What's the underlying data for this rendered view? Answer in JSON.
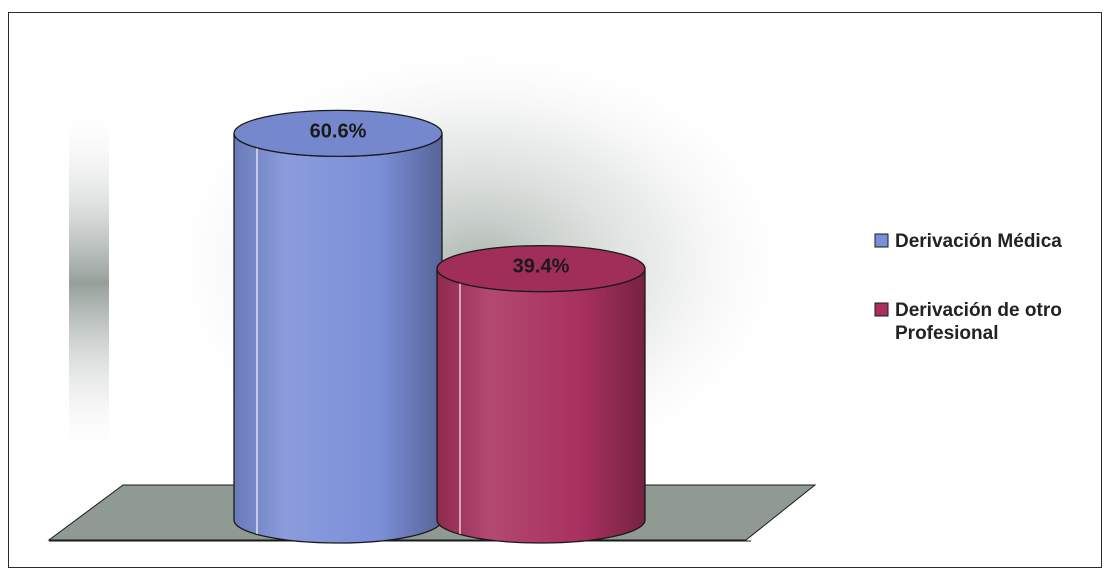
{
  "chart_data": {
    "type": "bar",
    "style": "3d-cylinder",
    "categories": [
      "Derivación Médica",
      "Derivación de otro Profesional"
    ],
    "values": [
      60.6,
      39.4
    ],
    "data_labels": [
      "60.6%",
      "39.4%"
    ],
    "colors": [
      "#7b8fd8",
      "#a8305e"
    ],
    "floor_color": "#8f9a92",
    "legend_position": "right",
    "grid": false,
    "legend": [
      {
        "label_lines": [
          "Derivación Médica"
        ],
        "color": "#7b8fd8"
      },
      {
        "label_lines": [
          "Derivación de otro",
          "Profesional"
        ],
        "color": "#a8305e"
      }
    ]
  }
}
